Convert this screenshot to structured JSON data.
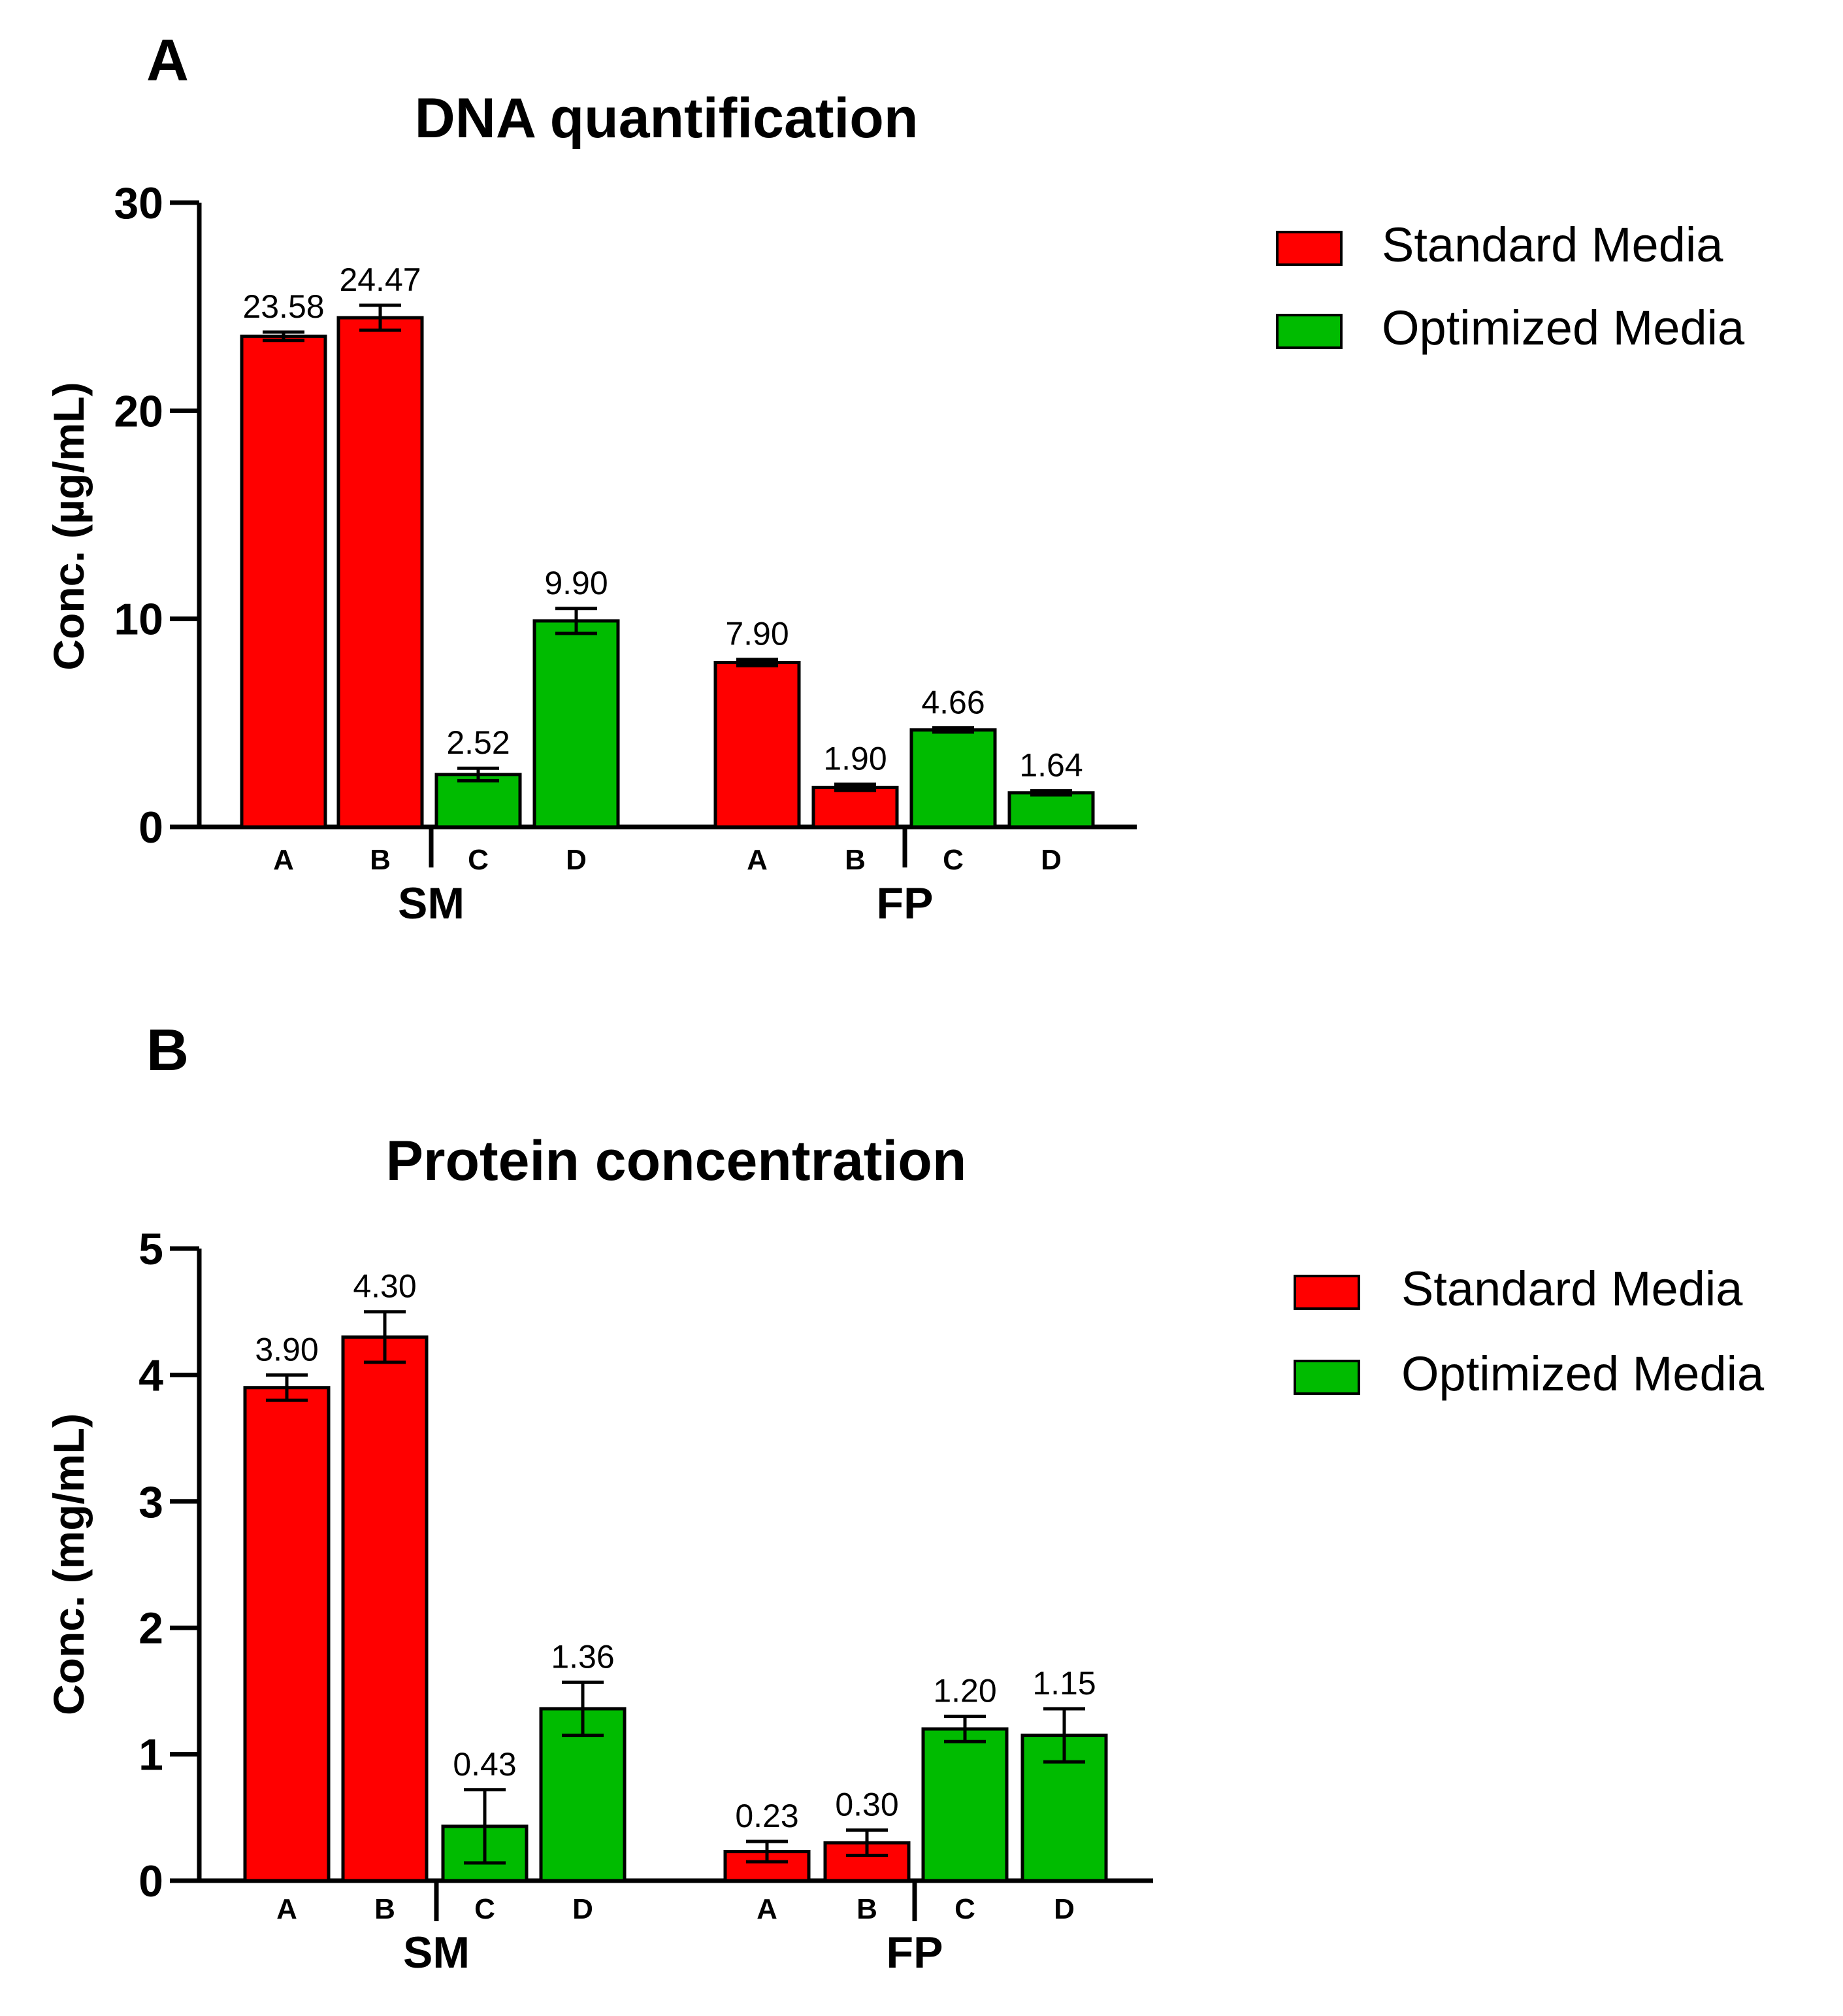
{
  "figure": {
    "panel_a_label": "A",
    "panel_b_label": "B"
  },
  "legend": {
    "standard_label": "Standard Media",
    "optimized_label": "Optimized Media"
  },
  "colors": {
    "standard": "#ff0000",
    "optimized": "#00bb00"
  },
  "chart_data": [
    {
      "type": "bar",
      "title": "DNA quantification",
      "ylabel": "Conc. (µg/mL)",
      "ylim": [
        0,
        30
      ],
      "yticks": [
        "0",
        "10",
        "20",
        "30"
      ],
      "groups": [
        "SM",
        "FP"
      ],
      "bars": [
        {
          "group": "SM",
          "label": "A",
          "series": "Standard Media",
          "value": 23.58,
          "error": 0.2,
          "value_label": "23.58"
        },
        {
          "group": "SM",
          "label": "B",
          "series": "Standard Media",
          "value": 24.47,
          "error": 0.6,
          "value_label": "24.47"
        },
        {
          "group": "SM",
          "label": "C",
          "series": "Optimized Media",
          "value": 2.52,
          "error": 0.3,
          "value_label": "2.52"
        },
        {
          "group": "SM",
          "label": "D",
          "series": "Optimized Media",
          "value": 9.9,
          "error": 0.6,
          "value_label": "9.90"
        },
        {
          "group": "FP",
          "label": "A",
          "series": "Standard Media",
          "value": 7.9,
          "error": 0.15,
          "value_label": "7.90"
        },
        {
          "group": "FP",
          "label": "B",
          "series": "Standard Media",
          "value": 1.9,
          "error": 0.15,
          "value_label": "1.90"
        },
        {
          "group": "FP",
          "label": "C",
          "series": "Optimized Media",
          "value": 4.66,
          "error": 0.1,
          "value_label": "4.66"
        },
        {
          "group": "FP",
          "label": "D",
          "series": "Optimized Media",
          "value": 1.64,
          "error": 0.1,
          "value_label": "1.64"
        }
      ]
    },
    {
      "type": "bar",
      "title": "Protein concentration",
      "ylabel": "Conc. (mg/mL)",
      "ylim": [
        0,
        5
      ],
      "yticks": [
        "0",
        "1",
        "2",
        "3",
        "4",
        "5"
      ],
      "groups": [
        "SM",
        "FP"
      ],
      "bars": [
        {
          "group": "SM",
          "label": "A",
          "series": "Standard Media",
          "value": 3.9,
          "error": 0.1,
          "value_label": "3.90"
        },
        {
          "group": "SM",
          "label": "B",
          "series": "Standard Media",
          "value": 4.3,
          "error": 0.2,
          "value_label": "4.30"
        },
        {
          "group": "SM",
          "label": "C",
          "series": "Optimized Media",
          "value": 0.43,
          "error": 0.29,
          "value_label": "0.43"
        },
        {
          "group": "SM",
          "label": "D",
          "series": "Optimized Media",
          "value": 1.36,
          "error": 0.21,
          "value_label": "1.36"
        },
        {
          "group": "FP",
          "label": "A",
          "series": "Standard Media",
          "value": 0.23,
          "error": 0.08,
          "value_label": "0.23"
        },
        {
          "group": "FP",
          "label": "B",
          "series": "Standard Media",
          "value": 0.3,
          "error": 0.1,
          "value_label": "0.30"
        },
        {
          "group": "FP",
          "label": "C",
          "series": "Optimized Media",
          "value": 1.2,
          "error": 0.1,
          "value_label": "1.20"
        },
        {
          "group": "FP",
          "label": "D",
          "series": "Optimized Media",
          "value": 1.15,
          "error": 0.21,
          "value_label": "1.15"
        }
      ]
    }
  ]
}
